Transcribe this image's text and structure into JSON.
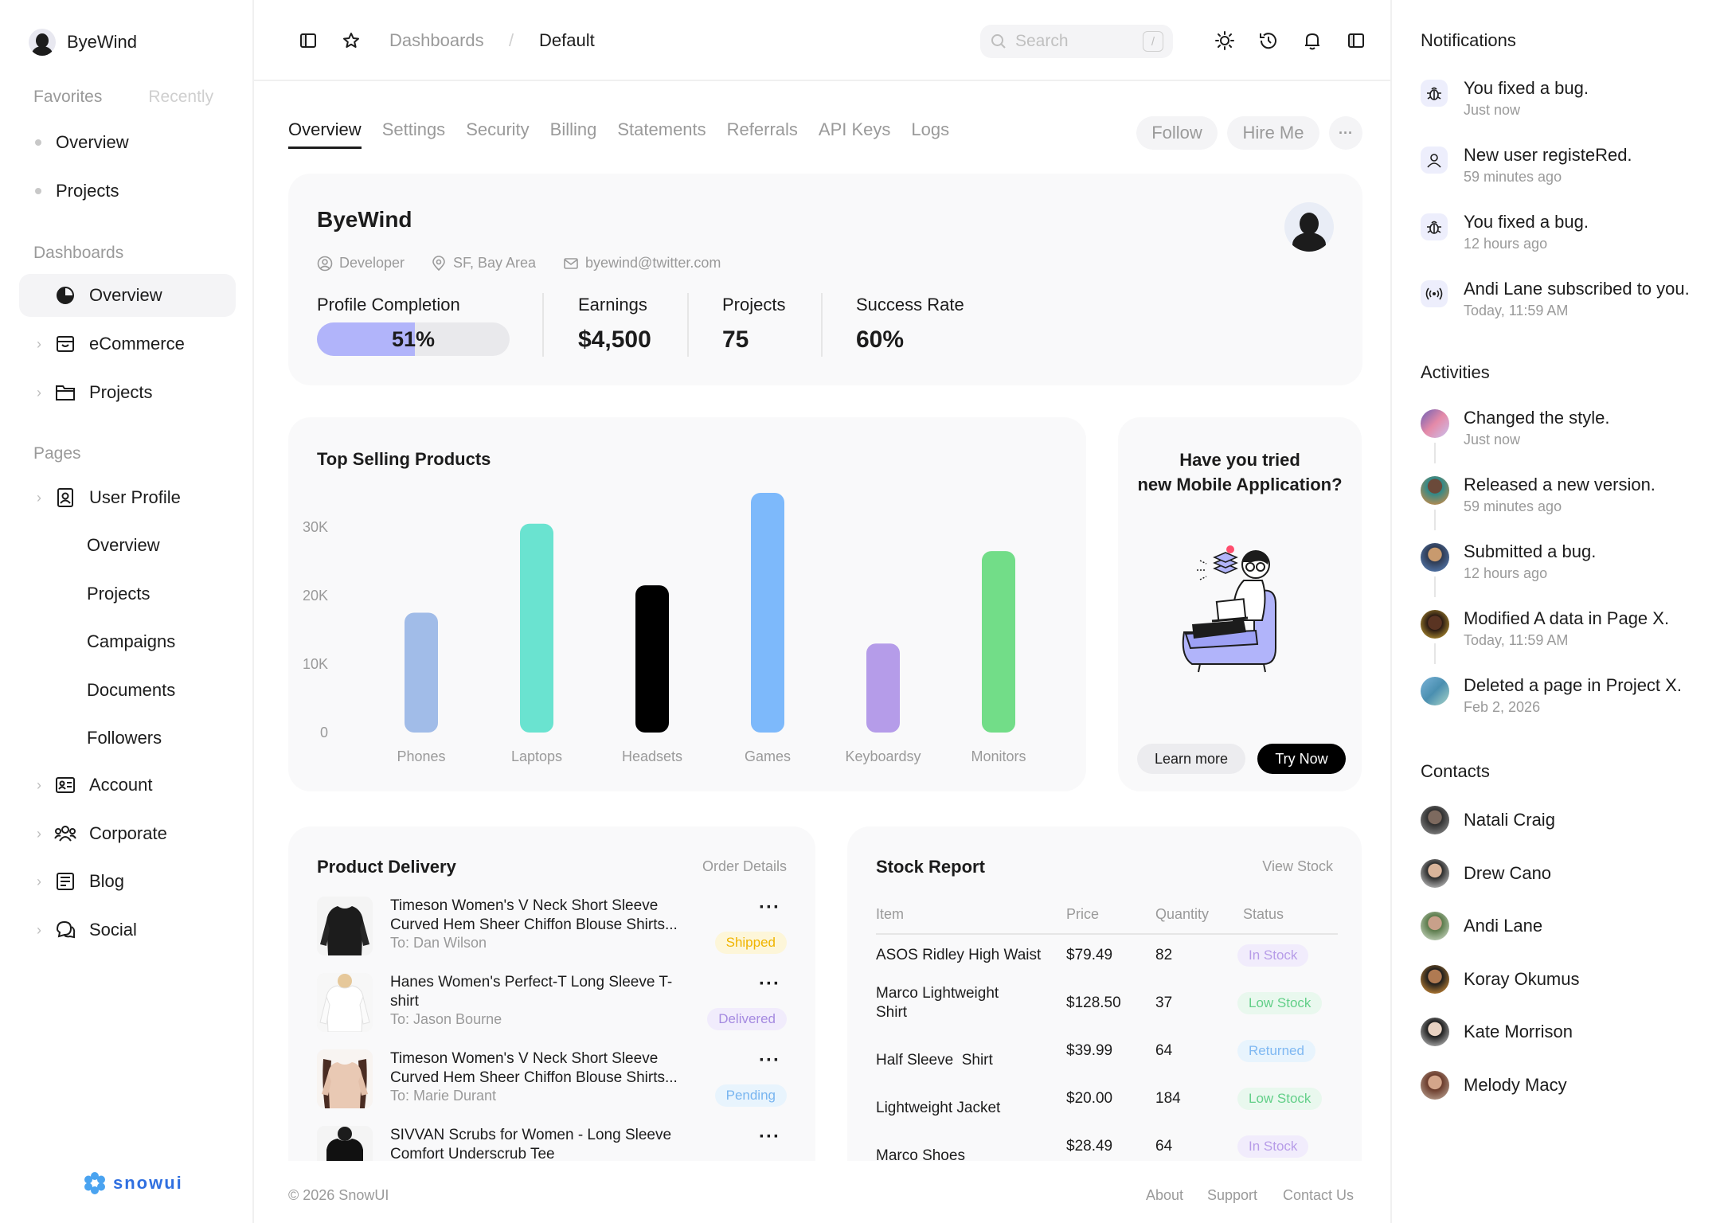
{
  "sidebar": {
    "brand": "ByeWind",
    "fav_tabs": [
      "Favorites",
      "Recently"
    ],
    "favorites": [
      "Overview",
      "Projects"
    ],
    "dashboards_label": "Dashboards",
    "dashboards": [
      "Overview",
      "eCommerce",
      "Projects"
    ],
    "pages_label": "Pages",
    "user_profile": "User Profile",
    "user_profile_sub": [
      "Overview",
      "Projects",
      "Campaigns",
      "Documents",
      "Followers"
    ],
    "pages": [
      "Account",
      "Corporate",
      "Blog",
      "Social"
    ],
    "logo": "snowui"
  },
  "topbar": {
    "breadcrumb": [
      "Dashboards",
      "Default"
    ],
    "separator": "/",
    "search_placeholder": "Search",
    "search_shortcut": "/"
  },
  "tabs": [
    "Overview",
    "Settings",
    "Security",
    "Billing",
    "Statements",
    "Referrals",
    "API Keys",
    "Logs"
  ],
  "actions": {
    "follow": "Follow",
    "hire": "Hire Me",
    "more": "···"
  },
  "profile": {
    "name": "ByeWind",
    "role": "Developer",
    "location": "SF, Bay Area",
    "email": "byewind@twitter.com",
    "completion_label": "Profile Completion",
    "completion_text": "51%",
    "completion_value": 0.51,
    "earnings_label": "Earnings",
    "earnings": "$4,500",
    "projects_label": "Projects",
    "projects": "75",
    "success_label": "Success Rate",
    "success": "60%"
  },
  "chart_data": {
    "type": "bar",
    "title": "Top Selling Products",
    "categories": [
      "Phones",
      "Laptops",
      "Headsets",
      "Games",
      "Keyboardsy",
      "Monitors"
    ],
    "values": [
      17500,
      30500,
      21500,
      35000,
      13000,
      26500
    ],
    "colors": [
      "#a1bce8",
      "#6ae3d0",
      "#000000",
      "#7db9fb",
      "#b59ce9",
      "#72dd88"
    ],
    "y_ticks": [
      "0",
      "10K",
      "20K",
      "30K"
    ],
    "ylim": [
      0,
      35000
    ],
    "grid": false
  },
  "promo": {
    "title_line1": "Have you tried",
    "title_line2": "new Mobile Application?",
    "learn_more": "Learn more",
    "try_now": "Try Now"
  },
  "delivery": {
    "title": "Product Delivery",
    "link": "Order Details",
    "items": [
      {
        "title": "Timeson Women's V Neck Short Sleeve Curved Hem Sheer Chiffon Blouse Shirts...",
        "to": "To: Dan Wilson",
        "status": "Shipped"
      },
      {
        "title": "Hanes Women's Perfect-T Long Sleeve T-shirt",
        "to": "To: Jason Bourne",
        "status": "Delivered"
      },
      {
        "title": "Timeson Women's V Neck Short Sleeve Curved Hem Sheer Chiffon Blouse Shirts...",
        "to": "To: Marie Durant",
        "status": "Pending"
      },
      {
        "title": "SIVVAN Scrubs for Women - Long Sleeve Comfort Underscrub Tee",
        "to": "",
        "status": ""
      }
    ],
    "dots": "···"
  },
  "stock": {
    "title": "Stock Report",
    "link": "View Stock",
    "headers": [
      "Item",
      "Price",
      "Quantity",
      "Status"
    ],
    "rows": [
      {
        "item": "ASOS Ridley High Waist",
        "price": "$79.49",
        "qty": "82",
        "status": "In Stock"
      },
      {
        "item": "Marco Lightweight Shirt",
        "price": "$128.50",
        "qty": "37",
        "status": "Low Stock"
      },
      {
        "item": "Half Sleeve  Shirt",
        "price": "$39.99",
        "qty": "64",
        "status": "Returned"
      },
      {
        "item": "Lightweight Jacket",
        "price": "$20.00",
        "qty": "184",
        "status": "Low Stock"
      },
      {
        "item": "Marco Shoes",
        "price": "$28.49",
        "qty": "64",
        "status": "In Stock"
      }
    ]
  },
  "footer": {
    "copyright": "© 2026 SnowUI",
    "links": [
      "About",
      "Support",
      "Contact Us"
    ]
  },
  "notifications": {
    "title": "Notifications",
    "items": [
      {
        "text": "You fixed a bug.",
        "time": "Just now",
        "icon": "bug-icon"
      },
      {
        "text": "New user registeRed.",
        "time": "59 minutes ago",
        "icon": "user-icon"
      },
      {
        "text": "You fixed a bug.",
        "time": "12 hours ago",
        "icon": "bug-icon"
      },
      {
        "text": "Andi Lane subscribed to you.",
        "time": "Today, 11:59 AM",
        "icon": "broadcast-icon"
      }
    ]
  },
  "activities": {
    "title": "Activities",
    "items": [
      {
        "text": "Changed the style.",
        "time": "Just now"
      },
      {
        "text": "Released a new version.",
        "time": "59 minutes ago"
      },
      {
        "text": "Submitted a bug.",
        "time": "12 hours ago"
      },
      {
        "text": "Modified A data in Page X.",
        "time": "Today, 11:59 AM"
      },
      {
        "text": "Deleted a page in Project X.",
        "time": "Feb 2, 2026"
      }
    ]
  },
  "contacts": {
    "title": "Contacts",
    "items": [
      "Natali Craig",
      "Drew Cano",
      "Andi Lane",
      "Koray Okumus",
      "Kate Morrison",
      "Melody Macy"
    ]
  },
  "colors": {
    "shipped_bg": "#fdf6d9",
    "shipped_fg": "#f0b400",
    "delivered_bg": "#f1ecfc",
    "delivered_fg": "#a58ae0",
    "pending_bg": "#e8f4fd",
    "pending_fg": "#78b5f0",
    "instock_bg": "#f1ecfc",
    "instock_fg": "#b79ce8",
    "lowstock_bg": "#e9f8ee",
    "lowstock_fg": "#62cf88",
    "returned_bg": "#e8f4fd",
    "returned_fg": "#7fb8f2"
  }
}
